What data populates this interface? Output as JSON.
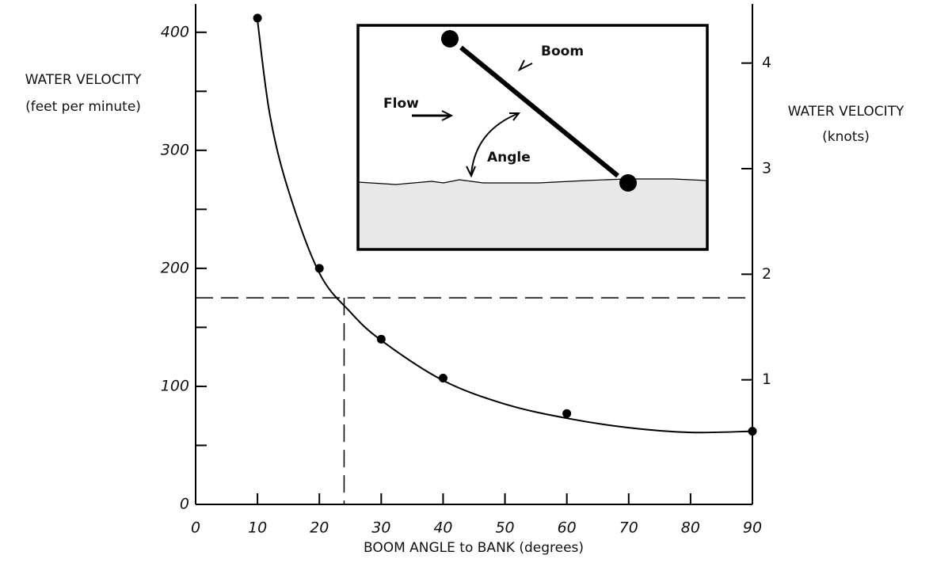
{
  "chart_data": {
    "type": "scatter",
    "xlabel": "BOOM ANGLE to BANK (degrees)",
    "ylabel": [
      "WATER VELOCITY",
      "(feet per minute)"
    ],
    "y2label": [
      "WATER VELOCITY",
      "(knots)"
    ],
    "xlim": [
      0,
      90
    ],
    "xticks": [
      0,
      10,
      20,
      30,
      40,
      50,
      60,
      70,
      80,
      90
    ],
    "ylim": [
      0,
      424
    ],
    "yticks": [
      0,
      100,
      200,
      300,
      400
    ],
    "yminor": [
      50,
      150,
      250,
      350
    ],
    "y2lim": [
      -0.18,
      4.56
    ],
    "y2ticks": [
      1,
      2,
      3,
      4
    ],
    "points": {
      "color": "#000000",
      "x": [
        10,
        20,
        30,
        40,
        60,
        90
      ],
      "values": [
        412,
        200,
        140,
        107,
        77,
        62
      ]
    },
    "curve": {
      "color": "#000000",
      "x": [
        10,
        12,
        15,
        20,
        25,
        30,
        40,
        50,
        60,
        70,
        80,
        90
      ],
      "values": [
        410,
        330,
        266,
        196,
        163,
        139,
        105,
        85,
        73,
        65,
        61,
        62
      ]
    },
    "reference": {
      "x": 24,
      "y": 175
    }
  },
  "inset": {
    "boom": "Boom",
    "flow": "Flow",
    "angle": "Angle"
  }
}
